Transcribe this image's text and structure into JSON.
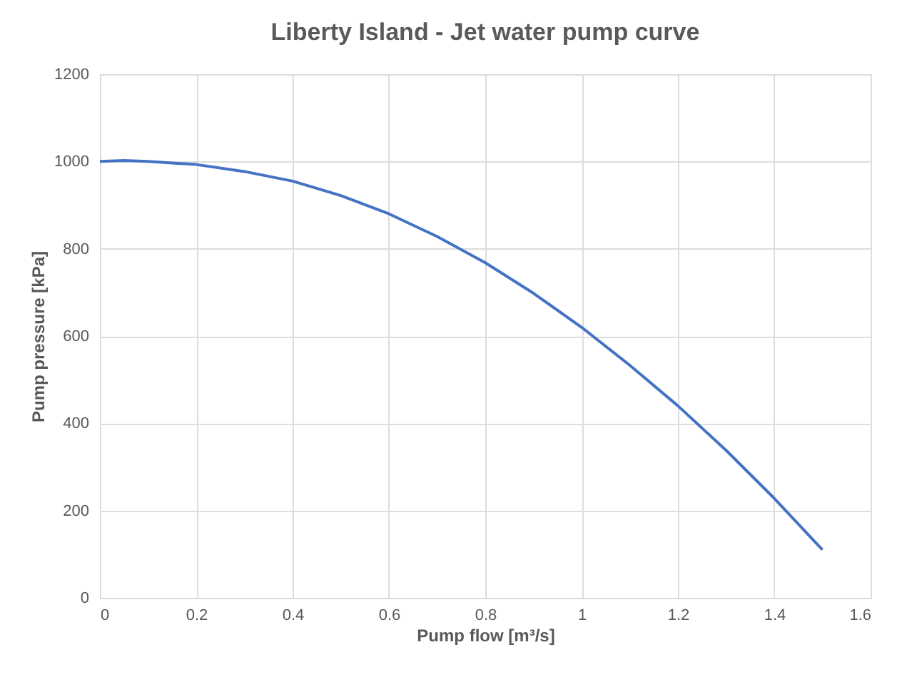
{
  "chart_data": {
    "type": "line",
    "title": "Liberty Island - Jet water pump curve",
    "xlabel": "Pump flow [m³/s]",
    "ylabel": "Pump pressure [kPa]",
    "x": [
      0,
      0.05,
      0.1,
      0.2,
      0.3,
      0.4,
      0.5,
      0.6,
      0.7,
      0.8,
      0.9,
      1.0,
      1.1,
      1.2,
      1.3,
      1.4,
      1.5
    ],
    "series": [
      {
        "color": "#4472c4",
        "values": [
          1000,
          1002,
          1000,
          993,
          977,
          955,
          922,
          880,
          828,
          768,
          698,
          620,
          533,
          440,
          338,
          228,
          110
        ]
      }
    ],
    "xlim": [
      0,
      1.6
    ],
    "xticks": [
      0,
      0.2,
      0.4,
      0.6,
      0.8,
      1,
      1.2,
      1.4,
      1.6
    ],
    "ylim": [
      0,
      1200
    ],
    "yticks": [
      0,
      200,
      400,
      600,
      800,
      1000,
      1200
    ],
    "grid": true,
    "marker": "none",
    "line_style": "solid",
    "legend": false
  }
}
